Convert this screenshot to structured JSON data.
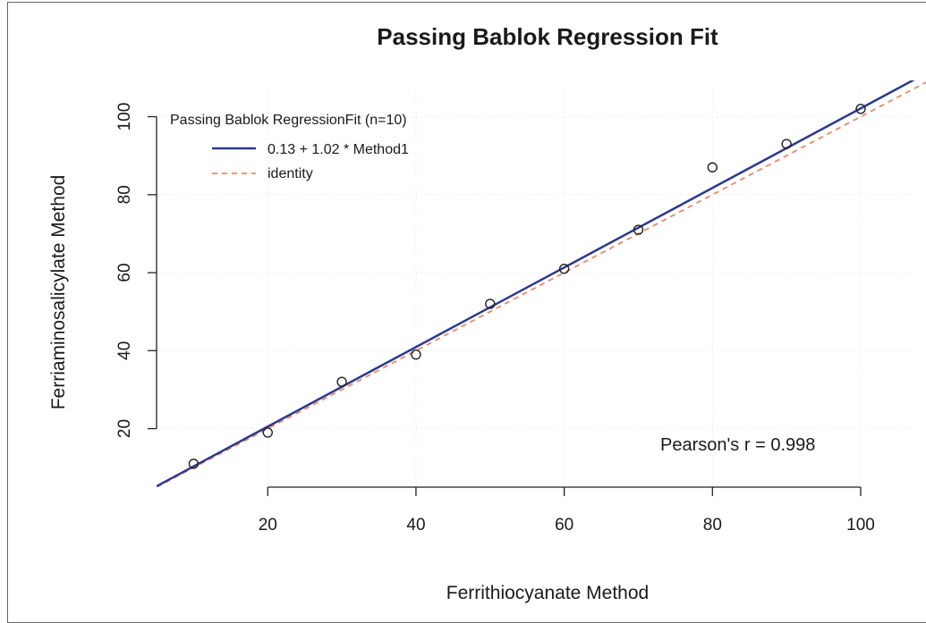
{
  "chart_data": {
    "type": "scatter",
    "title": "Passing Bablok Regression Fit",
    "xlabel": "Ferrithiocyanate Method",
    "ylabel": "Ferriaminosalicylate Method",
    "xlim": [
      5,
      107
    ],
    "ylim": [
      5,
      107
    ],
    "x_ticks": [
      20,
      40,
      60,
      80,
      100
    ],
    "y_ticks": [
      20,
      40,
      60,
      80,
      100
    ],
    "points": {
      "x": [
        10,
        20,
        30,
        40,
        50,
        60,
        70,
        80,
        90,
        100
      ],
      "y": [
        11,
        19,
        32,
        39,
        52,
        61,
        71,
        87,
        93,
        102
      ]
    },
    "regression": {
      "intercept": 0.13,
      "slope": 1.02,
      "color": "#2b3a8c"
    },
    "identity": {
      "intercept": 0,
      "slope": 1,
      "color": "#e8896b"
    },
    "legend": {
      "title": "Passing Bablok RegressionFit (n=10)",
      "entries": [
        "0.13 + 1.02 * Method1",
        "identity"
      ],
      "position": "top-left"
    },
    "annotation": "Pearson's r = 0.998",
    "grid": true
  }
}
